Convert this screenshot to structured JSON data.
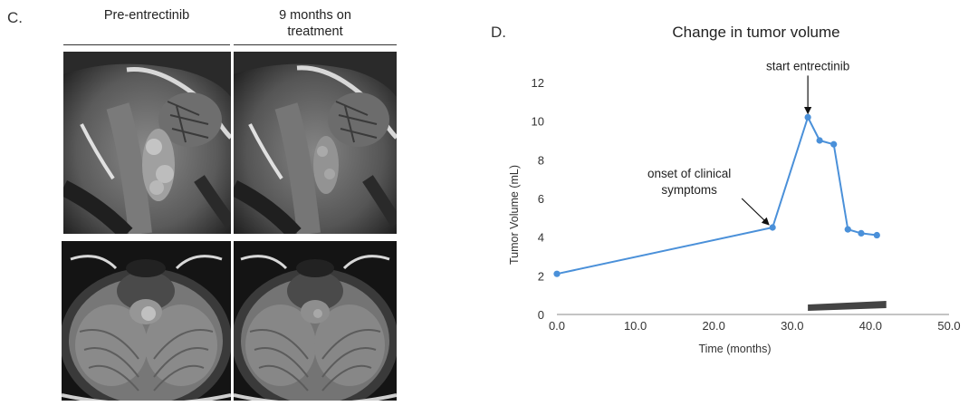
{
  "panel_c": {
    "letter": "C.",
    "col1_header": "Pre-entrectinib",
    "col2_header_line1": "9 months on",
    "col2_header_line2": "treatment"
  },
  "panel_d": {
    "letter": "D.",
    "title": "Change in tumor volume"
  },
  "chart_data": {
    "type": "line",
    "title": "Change in tumor volume",
    "xlabel": "Time (months)",
    "ylabel": "Tumor Volume (mL)",
    "xlim": [
      0,
      50
    ],
    "ylim": [
      0,
      12
    ],
    "xticks": [
      0,
      10,
      20,
      30,
      40,
      50
    ],
    "xtick_labels": [
      "0.0",
      "10.0",
      "20.0",
      "30.0",
      "40.0",
      "50.0"
    ],
    "yticks": [
      0,
      2,
      4,
      6,
      8,
      10,
      12
    ],
    "ytick_labels": [
      "0",
      "2",
      "4",
      "6",
      "8",
      "10",
      "12"
    ],
    "series": [
      {
        "x": [
          0.0,
          27.5,
          32.0,
          33.5,
          35.3,
          37.1,
          38.8,
          40.8
        ],
        "y": [
          2.1,
          4.5,
          10.2,
          9.0,
          8.8,
          4.4,
          4.2,
          4.1
        ],
        "color": "#4a90d9"
      }
    ],
    "treatment_bar": {
      "x_start": 32.0,
      "x_end": 42.0,
      "color": "#444444"
    },
    "annotations": [
      {
        "text_lines": [
          "start entrectinib"
        ],
        "x": 32.0,
        "y": 10.2
      },
      {
        "text_lines": [
          "onset of clinical",
          "symptoms"
        ],
        "x": 27.5,
        "y": 4.5
      }
    ],
    "grid": false,
    "legend": "none"
  }
}
